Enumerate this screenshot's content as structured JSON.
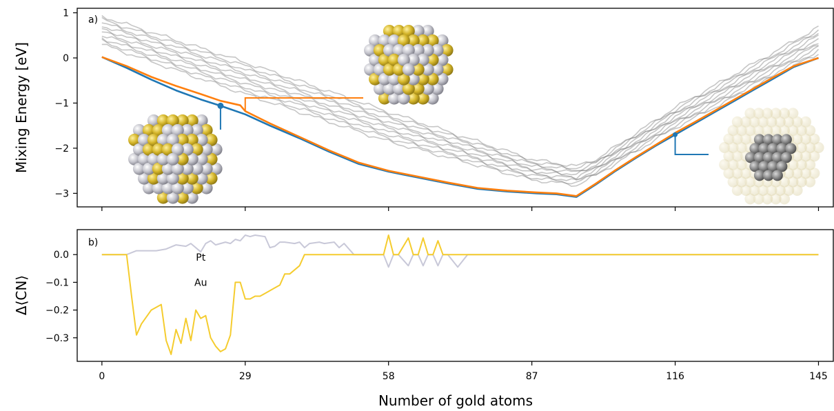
{
  "chart_data": [
    {
      "panel": "a)",
      "type": "line",
      "xlabel": "",
      "ylabel": "Mixing Energy [eV]",
      "xlim": [
        -5,
        148
      ],
      "ylim": [
        -3.3,
        1.1
      ],
      "xticks": [
        0,
        29,
        58,
        87,
        116,
        145
      ],
      "xtick_labels": [
        "",
        "",
        "",
        "",
        "",
        ""
      ],
      "yticks": [
        1,
        0,
        -1,
        -2,
        -3
      ],
      "ytick_labels": [
        "1",
        "0",
        "−1",
        "−2",
        "−3"
      ],
      "colors": {
        "blue": "#1f77b4",
        "orange": "#ff7f0e",
        "gray": "#7f7f7f"
      },
      "series": [
        {
          "color": "#1f77b4",
          "x": [
            0,
            5,
            10,
            15,
            20,
            24,
            29,
            34,
            40,
            46,
            52,
            58,
            64,
            70,
            76,
            82,
            88,
            92,
            96,
            100,
            104,
            108,
            112,
            116,
            120,
            124,
            128,
            132,
            136,
            140,
            145
          ],
          "y": [
            0.02,
            -0.22,
            -0.48,
            -0.72,
            -0.92,
            -1.06,
            -1.25,
            -1.5,
            -1.78,
            -2.08,
            -2.35,
            -2.52,
            -2.65,
            -2.78,
            -2.9,
            -2.96,
            -3.0,
            -3.02,
            -3.08,
            -2.8,
            -2.5,
            -2.22,
            -1.95,
            -1.7,
            -1.45,
            -1.2,
            -0.95,
            -0.7,
            -0.45,
            -0.2,
            0.0
          ]
        },
        {
          "color": "#ff7f0e",
          "x": [
            0,
            5,
            10,
            15,
            20,
            24,
            28,
            29,
            34,
            40,
            46,
            52,
            58,
            64,
            70,
            76,
            82,
            88,
            92,
            96,
            100,
            104,
            108,
            112,
            116,
            120,
            124,
            128,
            132,
            136,
            140,
            145
          ],
          "y": [
            0.02,
            -0.18,
            -0.42,
            -0.62,
            -0.8,
            -0.95,
            -1.05,
            -1.18,
            -1.45,
            -1.75,
            -2.05,
            -2.32,
            -2.5,
            -2.63,
            -2.76,
            -2.88,
            -2.94,
            -2.98,
            -3.0,
            -3.06,
            -2.78,
            -2.48,
            -2.2,
            -1.93,
            -1.66,
            -1.42,
            -1.17,
            -0.92,
            -0.67,
            -0.42,
            -0.18,
            0.0
          ]
        }
      ],
      "markers": [
        {
          "color": "#1f77b4",
          "x": 24,
          "y": -1.06
        },
        {
          "color": "#ff7f0e",
          "x": 29,
          "y": -1.18
        },
        {
          "color": "#1f77b4",
          "x": 116,
          "y": -1.7
        }
      ],
      "gray_bundle": {
        "count": 10,
        "color": "#808080",
        "x": [
          0,
          29,
          58,
          87,
          96,
          100,
          116,
          145
        ],
        "upper": [
          0.92,
          -0.1,
          -1.2,
          -2.25,
          -2.4,
          -2.25,
          -1.1,
          0.68
        ],
        "lower": [
          0.3,
          -0.8,
          -1.85,
          -2.7,
          -2.82,
          -2.6,
          -1.55,
          0.1
        ]
      }
    },
    {
      "panel": "b)",
      "type": "line",
      "xlabel": "Number of gold atoms",
      "ylabel": "Δ⟨CN⟩",
      "xlim": [
        -5,
        148
      ],
      "ylim": [
        -0.385,
        0.09
      ],
      "xticks": [
        0,
        29,
        58,
        87,
        116,
        145
      ],
      "xtick_labels": [
        "0",
        "29",
        "58",
        "87",
        "116",
        "145"
      ],
      "yticks": [
        0.0,
        -0.1,
        -0.2,
        -0.3
      ],
      "ytick_labels": [
        "0.0",
        "−0.1",
        "−0.2",
        "−0.3"
      ],
      "series": [
        {
          "name": "Pt",
          "color": "#c8c8d8",
          "x": [
            0,
            5,
            7,
            9,
            11,
            13,
            15,
            17,
            18,
            20,
            21,
            22,
            23,
            25,
            26,
            27,
            28,
            29,
            30,
            31,
            33,
            34,
            35,
            36,
            37,
            39,
            40,
            41,
            42,
            44,
            45,
            47,
            48,
            49,
            51,
            53,
            54,
            55,
            56,
            57,
            58,
            59,
            60,
            62,
            63,
            64,
            65,
            66,
            67,
            68,
            69,
            70,
            72,
            74,
            76,
            80,
            90,
            100,
            110,
            120,
            130,
            140,
            145
          ],
          "y": [
            0.0,
            0.0,
            0.014,
            0.014,
            0.014,
            0.02,
            0.035,
            0.03,
            0.04,
            0.01,
            0.04,
            0.05,
            0.035,
            0.045,
            0.04,
            0.055,
            0.05,
            0.07,
            0.065,
            0.07,
            0.065,
            0.025,
            0.03,
            0.045,
            0.045,
            0.04,
            0.045,
            0.025,
            0.04,
            0.045,
            0.04,
            0.045,
            0.025,
            0.04,
            0.0,
            0.0,
            0.0,
            0.0,
            0.0,
            0.0,
            -0.045,
            0.0,
            0.0,
            -0.04,
            0.0,
            0.0,
            -0.04,
            0.0,
            0.0,
            -0.04,
            0.0,
            0.0,
            -0.045,
            0.0,
            0.0,
            0.0,
            0.0,
            0.0,
            0.0,
            0.0,
            0.0,
            0.0,
            0.0
          ]
        },
        {
          "name": "Au",
          "color": "#f5cc2e",
          "x": [
            0,
            5,
            6,
            7,
            8,
            10,
            12,
            13,
            14,
            15,
            16,
            17,
            18,
            19,
            20,
            21,
            22,
            23,
            24,
            25,
            26,
            27,
            28,
            29,
            30,
            31,
            32,
            33,
            35,
            36,
            37,
            38,
            40,
            41,
            42,
            43,
            44,
            45,
            46,
            50,
            53,
            54,
            55,
            56,
            57,
            58,
            59,
            60,
            62,
            63,
            64,
            65,
            66,
            67,
            68,
            69,
            70,
            72,
            74,
            76,
            80,
            90,
            100,
            110,
            120,
            130,
            140,
            145
          ],
          "y": [
            0.0,
            0.0,
            -0.15,
            -0.29,
            -0.25,
            -0.2,
            -0.18,
            -0.31,
            -0.36,
            -0.27,
            -0.32,
            -0.23,
            -0.31,
            -0.2,
            -0.23,
            -0.22,
            -0.3,
            -0.33,
            -0.35,
            -0.34,
            -0.29,
            -0.1,
            -0.1,
            -0.16,
            -0.16,
            -0.15,
            -0.15,
            -0.14,
            -0.12,
            -0.11,
            -0.07,
            -0.07,
            -0.04,
            0.0,
            0.0,
            0.0,
            0.0,
            0.0,
            0.0,
            0.0,
            0.0,
            0.0,
            0.0,
            0.0,
            0.0,
            0.07,
            0.0,
            0.0,
            0.06,
            0.0,
            0.0,
            0.06,
            0.0,
            0.0,
            0.05,
            0.0,
            0.0,
            0.0,
            0.0,
            0.0,
            0.0,
            0.0,
            0.0,
            0.0,
            0.0,
            0.0,
            0.0,
            0.0
          ]
        }
      ],
      "series_labels": [
        {
          "text": "Pt",
          "x": 20,
          "y": 0.0
        },
        {
          "text": "Au",
          "x": 20,
          "y": -0.09
        }
      ]
    }
  ],
  "cluster_images": [
    {
      "name": "nanoparticle-au-pt-mixed-orange"
    },
    {
      "name": "nanoparticle-au-pt-mixed-blue"
    },
    {
      "name": "nanoparticle-pt-core-au-shell"
    }
  ]
}
